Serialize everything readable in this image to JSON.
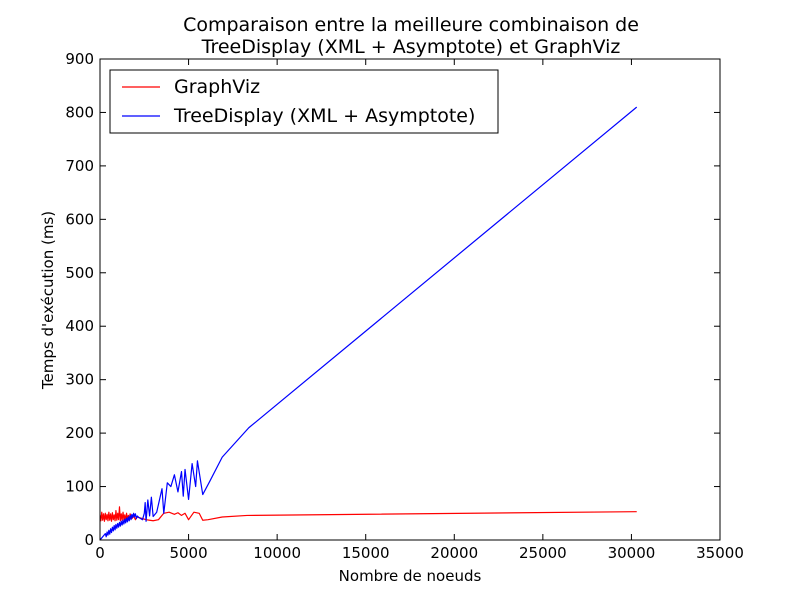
{
  "chart_data": {
    "type": "line",
    "title_lines": [
      "Comparaison entre la meilleure combinaison de",
      "TreeDisplay (XML + Asymptote) et GraphViz"
    ],
    "xlabel": "Nombre de noeuds",
    "ylabel": "Temps d'exécution (ms)",
    "xlim": [
      0,
      35000
    ],
    "ylim": [
      0,
      900
    ],
    "xticks": [
      0,
      5000,
      10000,
      15000,
      20000,
      25000,
      30000,
      35000
    ],
    "yticks": [
      0,
      100,
      200,
      300,
      400,
      500,
      600,
      700,
      800,
      900
    ],
    "grid": false,
    "legend_position": "top-left",
    "series": [
      {
        "name": "GraphViz",
        "color": "#ff0000",
        "x": [
          0,
          50,
          100,
          150,
          200,
          250,
          300,
          350,
          400,
          450,
          500,
          550,
          600,
          650,
          700,
          750,
          800,
          850,
          900,
          950,
          1000,
          1050,
          1100,
          1150,
          1200,
          1250,
          1300,
          1350,
          1400,
          1450,
          1500,
          1550,
          1600,
          1650,
          1700,
          1800,
          1900,
          2000,
          2100,
          2200,
          2400,
          2600,
          2800,
          3000,
          3300,
          3600,
          3900,
          4200,
          4400,
          4600,
          4800,
          5000,
          5300,
          5600,
          5800,
          6100,
          6900,
          8300,
          30300
        ],
        "y": [
          47,
          36,
          52,
          37,
          49,
          35,
          50,
          38,
          48,
          36,
          52,
          37,
          49,
          35,
          51,
          38,
          47,
          36,
          55,
          37,
          50,
          38,
          62,
          36,
          49,
          37,
          52,
          38,
          47,
          36,
          50,
          38,
          46,
          37,
          49,
          40,
          45,
          38,
          43,
          42,
          40,
          38,
          37,
          36,
          38,
          50,
          52,
          48,
          51,
          46,
          50,
          38,
          52,
          50,
          37,
          38,
          43,
          46,
          53
        ]
      },
      {
        "name": "TreeDisplay (XML + Asymptote)",
        "color": "#0000ff",
        "x": [
          0,
          100,
          200,
          300,
          350,
          400,
          450,
          500,
          550,
          600,
          650,
          700,
          750,
          800,
          850,
          900,
          950,
          1000,
          1050,
          1100,
          1150,
          1200,
          1250,
          1300,
          1350,
          1400,
          1450,
          1500,
          1550,
          1600,
          1650,
          1700,
          1750,
          1800,
          1850,
          1900,
          1950,
          2000,
          2050,
          2100,
          2200,
          2300,
          2400,
          2500,
          2550,
          2600,
          2700,
          2800,
          2900,
          3000,
          3200,
          3500,
          3600,
          3800,
          4000,
          4200,
          4400,
          4600,
          4700,
          4800,
          5000,
          5200,
          5400,
          5500,
          5800,
          6200,
          6900,
          8400,
          30300
        ],
        "y": [
          0,
          4,
          8,
          12,
          6,
          15,
          9,
          18,
          11,
          21,
          14,
          24,
          17,
          27,
          19,
          29,
          22,
          31,
          24,
          33,
          26,
          35,
          28,
          37,
          30,
          39,
          32,
          41,
          34,
          43,
          36,
          46,
          38,
          48,
          42,
          50,
          44,
          49,
          40,
          45,
          42,
          40,
          38,
          50,
          70,
          35,
          75,
          45,
          80,
          44,
          52,
          96,
          50,
          107,
          100,
          122,
          90,
          128,
          82,
          132,
          76,
          143,
          100,
          148,
          85,
          110,
          155,
          210,
          810
        ]
      }
    ]
  }
}
